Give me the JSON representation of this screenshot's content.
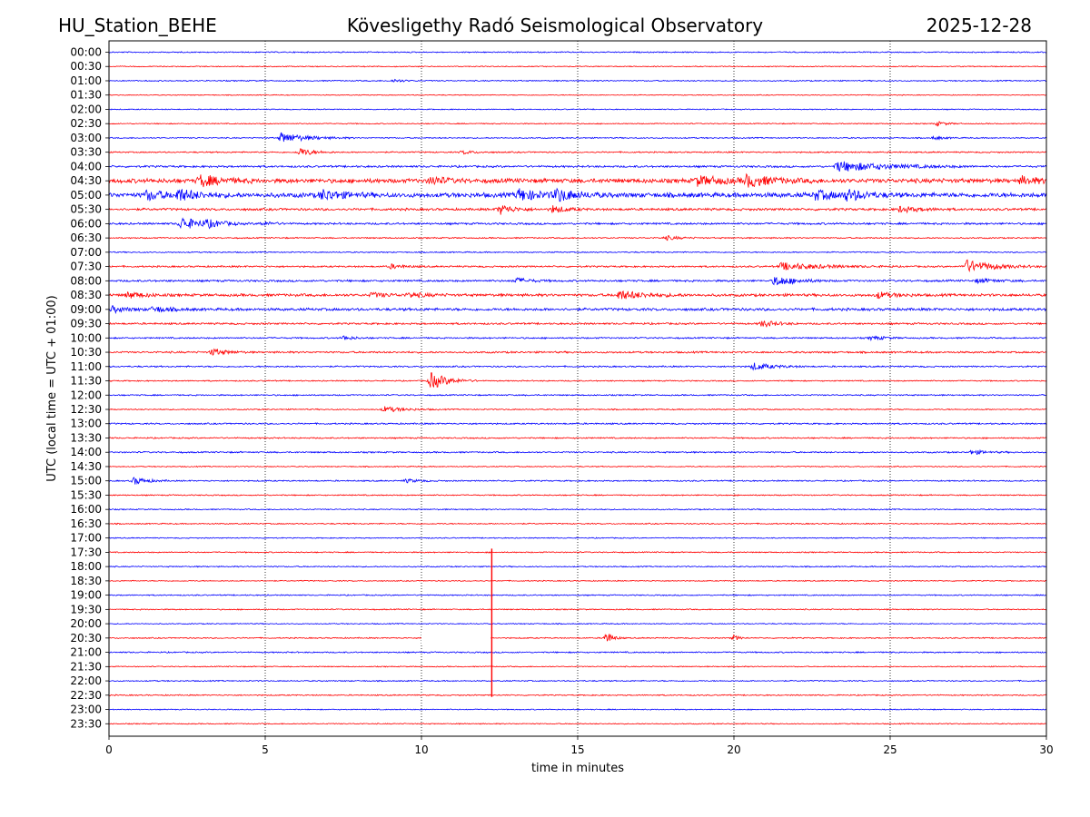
{
  "chart_data": {
    "type": "line",
    "title_left": "HU_Station_BEHE",
    "title": "Kövesligethy Radó Seismological Observatory",
    "title_right": "2025-12-28",
    "xlabel": "time in minutes",
    "ylabel": "UTC (local time = UTC + 01:00)",
    "xlim": [
      0,
      30
    ],
    "x_ticks": [
      0,
      5,
      10,
      15,
      20,
      25,
      30
    ],
    "x_tick_labels": [
      "0",
      "5",
      "10",
      "15",
      "20",
      "25",
      "30"
    ],
    "grid": "vertical dotted at 5-minute ticks",
    "colors": {
      "blue": "#0000ff",
      "red": "#ff0000"
    },
    "row_labels": [
      "00:00",
      "00:30",
      "01:00",
      "01:30",
      "02:00",
      "02:30",
      "03:00",
      "03:30",
      "04:00",
      "04:30",
      "05:00",
      "05:30",
      "06:00",
      "06:30",
      "07:00",
      "07:30",
      "08:00",
      "08:30",
      "09:00",
      "09:30",
      "10:00",
      "10:30",
      "11:00",
      "11:30",
      "12:00",
      "12:30",
      "13:00",
      "13:30",
      "14:00",
      "14:30",
      "15:00",
      "15:30",
      "16:00",
      "16:30",
      "17:00",
      "17:30",
      "18:00",
      "18:30",
      "19:00",
      "19:30",
      "20:00",
      "20:30",
      "21:00",
      "21:30",
      "22:00",
      "22:30",
      "23:00",
      "23:30"
    ],
    "trace_colors_cycle": [
      "blue",
      "red"
    ],
    "base_noise": [
      0.35,
      0.3,
      0.35,
      0.25,
      0.3,
      0.3,
      0.35,
      0.4,
      0.6,
      1.3,
      1.4,
      0.7,
      0.6,
      0.4,
      0.35,
      0.5,
      0.6,
      0.8,
      0.8,
      0.55,
      0.45,
      0.55,
      0.45,
      0.35,
      0.4,
      0.35,
      0.45,
      0.4,
      0.45,
      0.3,
      0.4,
      0.35,
      0.35,
      0.35,
      0.3,
      0.35,
      0.35,
      0.3,
      0.35,
      0.35,
      0.3,
      0.35,
      0.4,
      0.3,
      0.35,
      0.35,
      0.3,
      0.3
    ],
    "events": [
      {
        "row": 2,
        "t": 9.1,
        "amp": 1.2,
        "dur": 0.3
      },
      {
        "row": 5,
        "t": 26.5,
        "amp": 1.5,
        "dur": 0.3
      },
      {
        "row": 6,
        "t": 5.5,
        "amp": 3.5,
        "dur": 0.8
      },
      {
        "row": 6,
        "t": 26.4,
        "amp": 1.2,
        "dur": 0.3
      },
      {
        "row": 7,
        "t": 6.1,
        "amp": 3.0,
        "dur": 0.4
      },
      {
        "row": 7,
        "t": 11.3,
        "amp": 1.2,
        "dur": 0.4
      },
      {
        "row": 8,
        "t": 23.3,
        "amp": 3.5,
        "dur": 1.5
      },
      {
        "row": 9,
        "t": 2.9,
        "amp": 4.0,
        "dur": 0.6
      },
      {
        "row": 9,
        "t": 10.3,
        "amp": 3.0,
        "dur": 0.4
      },
      {
        "row": 9,
        "t": 18.8,
        "amp": 3.0,
        "dur": 0.8
      },
      {
        "row": 9,
        "t": 20.4,
        "amp": 3.5,
        "dur": 0.8
      },
      {
        "row": 9,
        "t": 29.2,
        "amp": 2.5,
        "dur": 0.5
      },
      {
        "row": 10,
        "t": 1.2,
        "amp": 3.0,
        "dur": 0.6
      },
      {
        "row": 10,
        "t": 2.2,
        "amp": 3.5,
        "dur": 0.6
      },
      {
        "row": 10,
        "t": 6.8,
        "amp": 3.5,
        "dur": 0.6
      },
      {
        "row": 10,
        "t": 13.1,
        "amp": 4.0,
        "dur": 0.6
      },
      {
        "row": 10,
        "t": 14.3,
        "amp": 4.0,
        "dur": 0.6
      },
      {
        "row": 10,
        "t": 22.6,
        "amp": 3.0,
        "dur": 0.6
      },
      {
        "row": 10,
        "t": 23.6,
        "amp": 3.0,
        "dur": 0.6
      },
      {
        "row": 11,
        "t": 12.5,
        "amp": 3.5,
        "dur": 0.4
      },
      {
        "row": 11,
        "t": 14.2,
        "amp": 2.5,
        "dur": 0.4
      },
      {
        "row": 11,
        "t": 25.3,
        "amp": 2.0,
        "dur": 0.6
      },
      {
        "row": 12,
        "t": 2.3,
        "amp": 4.5,
        "dur": 0.6
      },
      {
        "row": 12,
        "t": 3.1,
        "amp": 2.0,
        "dur": 0.5
      },
      {
        "row": 12,
        "t": 4.9,
        "amp": 1.5,
        "dur": 0.3
      },
      {
        "row": 13,
        "t": 17.8,
        "amp": 1.5,
        "dur": 0.4
      },
      {
        "row": 15,
        "t": 9.0,
        "amp": 1.5,
        "dur": 0.4
      },
      {
        "row": 15,
        "t": 21.5,
        "amp": 2.5,
        "dur": 1.2
      },
      {
        "row": 15,
        "t": 27.4,
        "amp": 4.5,
        "dur": 0.8
      },
      {
        "row": 16,
        "t": 13.0,
        "amp": 2.0,
        "dur": 0.4
      },
      {
        "row": 16,
        "t": 21.3,
        "amp": 3.5,
        "dur": 0.6
      },
      {
        "row": 16,
        "t": 27.8,
        "amp": 1.5,
        "dur": 0.5
      },
      {
        "row": 17,
        "t": 0.6,
        "amp": 2.0,
        "dur": 0.5
      },
      {
        "row": 17,
        "t": 8.4,
        "amp": 1.5,
        "dur": 0.5
      },
      {
        "row": 17,
        "t": 9.6,
        "amp": 1.5,
        "dur": 0.5
      },
      {
        "row": 17,
        "t": 16.3,
        "amp": 3.0,
        "dur": 0.8
      },
      {
        "row": 17,
        "t": 24.6,
        "amp": 2.0,
        "dur": 0.5
      },
      {
        "row": 18,
        "t": 0.1,
        "amp": 2.0,
        "dur": 0.4
      },
      {
        "row": 18,
        "t": 1.4,
        "amp": 2.0,
        "dur": 0.5
      },
      {
        "row": 19,
        "t": 20.9,
        "amp": 2.5,
        "dur": 0.4
      },
      {
        "row": 20,
        "t": 7.5,
        "amp": 1.5,
        "dur": 0.3
      },
      {
        "row": 20,
        "t": 24.4,
        "amp": 1.5,
        "dur": 0.4
      },
      {
        "row": 21,
        "t": 3.3,
        "amp": 2.5,
        "dur": 0.4
      },
      {
        "row": 22,
        "t": 20.6,
        "amp": 2.5,
        "dur": 0.6
      },
      {
        "row": 23,
        "t": 10.3,
        "amp": 6.0,
        "dur": 0.5
      },
      {
        "row": 25,
        "t": 8.8,
        "amp": 2.0,
        "dur": 0.6
      },
      {
        "row": 28,
        "t": 27.6,
        "amp": 1.5,
        "dur": 0.4
      },
      {
        "row": 30,
        "t": 0.8,
        "amp": 2.5,
        "dur": 0.4
      },
      {
        "row": 30,
        "t": 9.5,
        "amp": 1.2,
        "dur": 0.4
      },
      {
        "row": 41,
        "t": 15.9,
        "amp": 4.5,
        "dur": 0.2
      },
      {
        "row": 41,
        "t": 20.0,
        "amp": 2.0,
        "dur": 0.15
      }
    ],
    "gaps": [
      {
        "row": 41,
        "start": 10.0,
        "end": 12.2
      }
    ],
    "spike": {
      "t": 12.25,
      "row_top": 35,
      "row_bottom": 45,
      "color": "red"
    }
  }
}
